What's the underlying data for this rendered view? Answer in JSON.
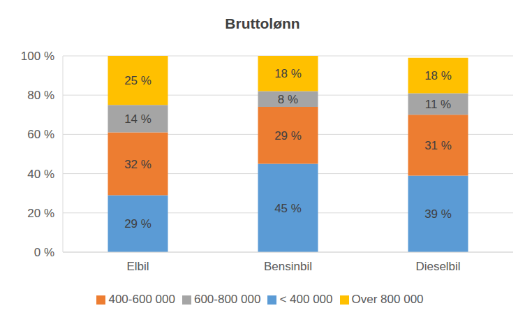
{
  "chart_data": {
    "type": "bar",
    "title": "Bruttolønn",
    "categories": [
      "Elbil",
      "Bensinbil",
      "Dieselbil"
    ],
    "series": [
      {
        "name": "< 400 000",
        "color": "#5b9bd5",
        "values": [
          29,
          45,
          39
        ],
        "value_labels": [
          "29 %",
          "45 %",
          "39 %"
        ]
      },
      {
        "name": "400-600 000",
        "color": "#ed7d31",
        "values": [
          32,
          29,
          31
        ],
        "value_labels": [
          "32 %",
          "29 %",
          "31 %"
        ]
      },
      {
        "name": "600-800 000",
        "color": "#a5a5a5",
        "values": [
          14,
          8,
          11
        ],
        "value_labels": [
          "14 %",
          "8 %",
          "11 %"
        ]
      },
      {
        "name": "Over 800 000",
        "color": "#ffc000",
        "values": [
          25,
          18,
          18
        ],
        "value_labels": [
          "25 %",
          "18 %",
          "18 %"
        ]
      }
    ],
    "ylim": [
      0,
      100
    ],
    "yticks": [
      {
        "value": 0,
        "label": "0 %"
      },
      {
        "value": 20,
        "label": "20 %"
      },
      {
        "value": 40,
        "label": "40 %"
      },
      {
        "value": 60,
        "label": "60 %"
      },
      {
        "value": 80,
        "label": "80 %"
      },
      {
        "value": 100,
        "label": "100 %"
      }
    ],
    "stacked": true,
    "data_labels": true,
    "grid": true,
    "legend": "bottom"
  }
}
